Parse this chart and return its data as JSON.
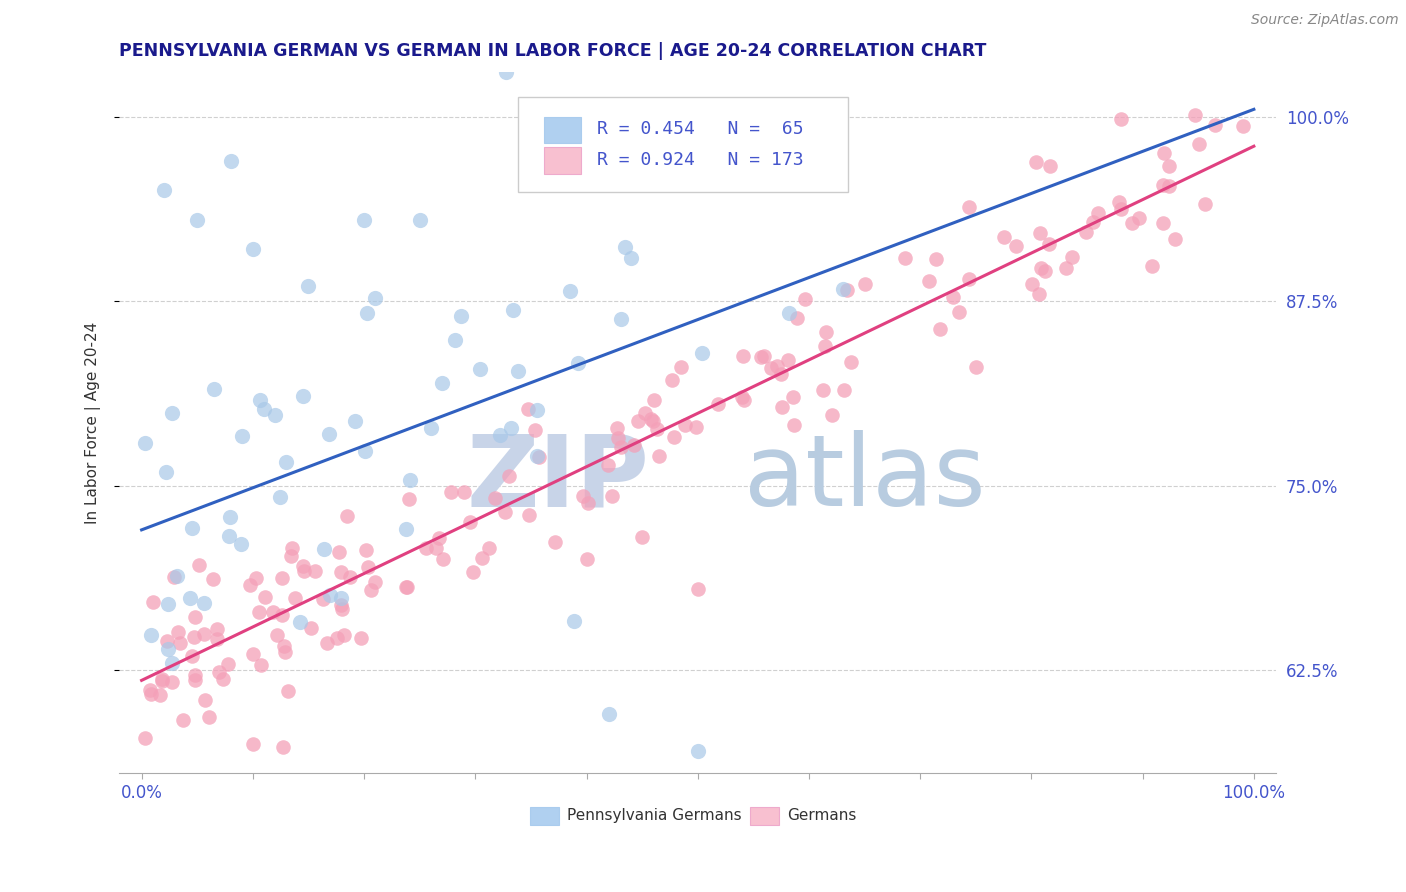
{
  "title": "PENNSYLVANIA GERMAN VS GERMAN IN LABOR FORCE | AGE 20-24 CORRELATION CHART",
  "source_text": "Source: ZipAtlas.com",
  "ylabel": "In Labor Force | Age 20-24",
  "xlim": [
    -0.02,
    1.02
  ],
  "ylim": [
    0.555,
    1.03
  ],
  "yticks": [
    0.625,
    0.75,
    0.875,
    1.0
  ],
  "ytick_labels": [
    "62.5%",
    "75.0%",
    "87.5%",
    "100.0%"
  ],
  "xtick_labels_left": "0.0%",
  "xtick_labels_right": "100.0%",
  "r_penn": 0.454,
  "n_penn": 65,
  "r_german": 0.924,
  "n_german": 173,
  "blue_dot_color": "#a8c8e8",
  "pink_dot_color": "#f4a0b8",
  "blue_line_color": "#3060c0",
  "pink_line_color": "#e04080",
  "legend_blue_fill": "#b0d0f0",
  "legend_pink_fill": "#f8c0d0",
  "title_color": "#1a1a8c",
  "axis_color": "#4455cc",
  "grid_color": "#d0d0d0",
  "background_color": "#ffffff",
  "watermark_zip_color": "#c8d4e8",
  "watermark_atlas_color": "#b8cce0",
  "blue_line_start_y": 0.72,
  "blue_line_end_y": 1.005,
  "pink_line_start_y": 0.618,
  "pink_line_end_y": 0.98,
  "seed": 123
}
